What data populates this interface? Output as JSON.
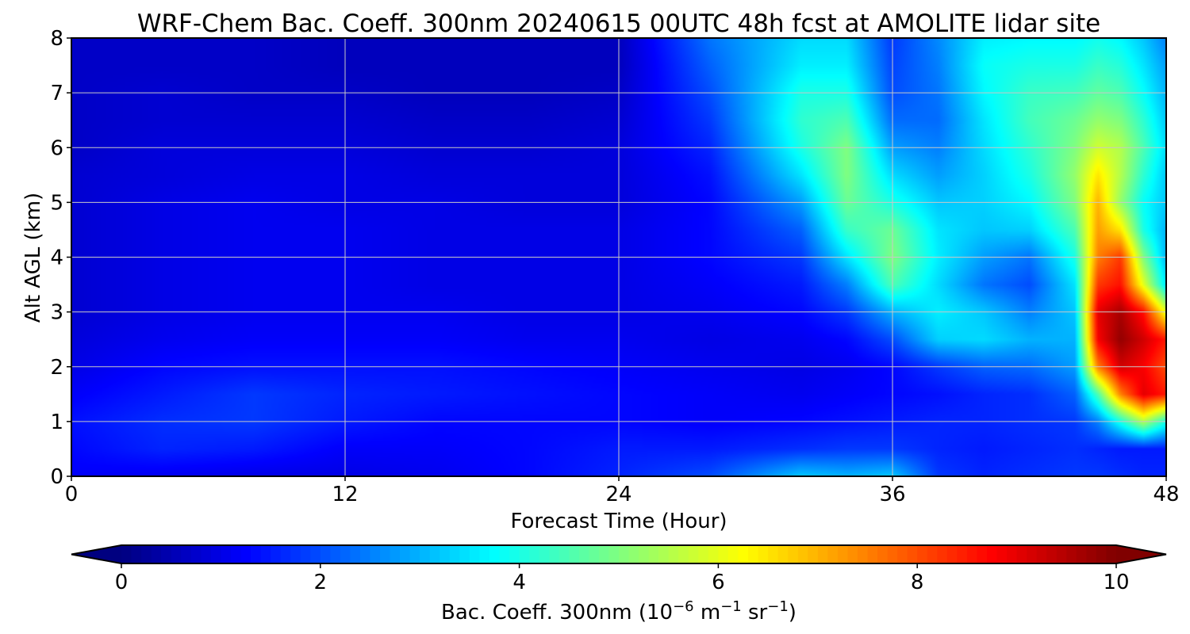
{
  "chart_data": {
    "type": "heatmap",
    "title": "WRF-Chem Bac. Coeff. 300nm  20240615 00UTC 48h fcst at AMOLITE lidar site",
    "xlabel": "Forecast Time (Hour)",
    "ylabel": "Alt AGL (km)",
    "xlim": [
      0,
      48
    ],
    "ylim": [
      0,
      8
    ],
    "xticks": [
      0,
      12,
      24,
      36,
      48
    ],
    "yticks": [
      0,
      1,
      2,
      3,
      4,
      5,
      6,
      7,
      8
    ],
    "grid": true,
    "colormap": "jet",
    "colorbar": {
      "label_main": "Bac. Coeff. 300nm  (10",
      "label_exp1": "−6",
      "label_mid": " m",
      "label_exp2": "−1",
      "label_mid2": " sr",
      "label_exp3": "−1",
      "label_end": ")",
      "vmin": 0,
      "vmax": 10,
      "ticks": [
        0,
        2,
        4,
        6,
        8,
        10
      ],
      "extend": "both",
      "orientation": "horizontal"
    },
    "x": [
      0,
      4,
      8,
      12,
      16,
      20,
      24,
      28,
      32,
      34,
      36,
      38,
      40,
      42,
      44,
      45,
      46,
      47,
      48
    ],
    "y": [
      0,
      0.5,
      1,
      1.5,
      2,
      2.5,
      3,
      3.5,
      4,
      4.5,
      5,
      5.5,
      6,
      6.5,
      7,
      7.5,
      8
    ],
    "z": [
      [
        1.2,
        1.1,
        1.0,
        1.0,
        1.1,
        1.3,
        1.6,
        2.0,
        3.2,
        3.0,
        3.2,
        1.8,
        1.6,
        1.7,
        1.8,
        1.8,
        1.7,
        1.6,
        1.6
      ],
      [
        1.3,
        1.6,
        1.5,
        1.2,
        1.2,
        1.3,
        1.5,
        1.5,
        1.7,
        1.8,
        1.8,
        1.6,
        1.5,
        1.6,
        1.7,
        1.6,
        1.5,
        1.5,
        1.5
      ],
      [
        1.4,
        1.7,
        1.8,
        1.5,
        1.3,
        1.3,
        1.3,
        1.2,
        1.3,
        1.4,
        1.5,
        1.6,
        1.6,
        1.7,
        1.8,
        2.5,
        4.0,
        5.5,
        4.0
      ],
      [
        1.2,
        1.5,
        1.8,
        1.6,
        1.5,
        1.4,
        1.3,
        1.2,
        1.1,
        1.2,
        1.3,
        1.4,
        1.6,
        1.7,
        2.2,
        4.5,
        7.5,
        9.0,
        8.5
      ],
      [
        1.0,
        1.3,
        1.4,
        1.4,
        1.4,
        1.3,
        1.2,
        1.1,
        1.0,
        1.1,
        1.3,
        1.8,
        2.2,
        2.3,
        2.8,
        7.5,
        9.2,
        8.8,
        8.0
      ],
      [
        0.9,
        1.1,
        1.2,
        1.2,
        1.2,
        1.1,
        1.1,
        1.0,
        1.1,
        1.3,
        2.0,
        3.3,
        3.4,
        3.0,
        3.0,
        8.8,
        9.8,
        9.2,
        8.5
      ],
      [
        0.8,
        1.0,
        1.1,
        1.1,
        1.1,
        1.0,
        1.0,
        1.1,
        1.3,
        1.8,
        3.0,
        3.6,
        3.2,
        2.5,
        3.2,
        9.0,
        9.6,
        8.6,
        6.0
      ],
      [
        0.8,
        1.0,
        1.1,
        1.1,
        1.0,
        1.0,
        1.0,
        1.2,
        1.5,
        2.5,
        4.5,
        3.4,
        2.4,
        2.0,
        3.5,
        8.2,
        8.6,
        6.0,
        3.5
      ],
      [
        0.8,
        1.0,
        1.1,
        1.1,
        1.0,
        1.0,
        1.0,
        1.3,
        1.8,
        3.5,
        5.0,
        3.6,
        2.8,
        2.4,
        4.0,
        7.5,
        8.2,
        5.0,
        3.0
      ],
      [
        0.8,
        1.0,
        1.1,
        1.1,
        1.0,
        1.0,
        1.0,
        1.3,
        2.2,
        4.3,
        4.8,
        3.5,
        3.2,
        3.3,
        4.5,
        7.2,
        6.5,
        4.0,
        3.0
      ],
      [
        0.8,
        1.0,
        1.1,
        1.0,
        1.0,
        0.9,
        0.9,
        1.3,
        2.8,
        4.8,
        4.0,
        3.2,
        3.3,
        3.7,
        5.0,
        7.0,
        5.2,
        3.8,
        3.2
      ],
      [
        0.8,
        0.9,
        1.0,
        1.0,
        0.9,
        0.9,
        0.9,
        1.4,
        3.5,
        5.0,
        3.4,
        2.8,
        3.3,
        4.0,
        5.2,
        6.5,
        5.5,
        4.2,
        3.2
      ],
      [
        0.7,
        0.9,
        0.9,
        0.9,
        0.8,
        0.8,
        0.9,
        1.6,
        4.0,
        5.0,
        2.8,
        2.5,
        3.4,
        4.2,
        5.0,
        5.8,
        5.5,
        4.5,
        3.4
      ],
      [
        0.7,
        0.8,
        0.8,
        0.8,
        0.7,
        0.7,
        0.8,
        1.8,
        4.2,
        4.5,
        2.3,
        2.3,
        3.5,
        4.4,
        4.8,
        5.2,
        5.0,
        4.2,
        3.2
      ],
      [
        0.7,
        0.8,
        0.7,
        0.7,
        0.6,
        0.6,
        0.7,
        2.0,
        4.0,
        4.0,
        2.0,
        2.4,
        3.7,
        4.3,
        4.4,
        4.7,
        4.5,
        3.8,
        3.0
      ],
      [
        0.7,
        0.7,
        0.7,
        0.6,
        0.6,
        0.6,
        0.6,
        2.2,
        3.6,
        3.6,
        1.9,
        2.5,
        3.8,
        4.0,
        4.0,
        4.3,
        4.1,
        3.5,
        2.8
      ],
      [
        0.7,
        0.7,
        0.7,
        0.6,
        0.6,
        0.6,
        0.6,
        2.4,
        3.4,
        3.4,
        1.8,
        2.6,
        3.6,
        3.7,
        3.7,
        3.9,
        3.7,
        3.2,
        2.5
      ]
    ]
  }
}
